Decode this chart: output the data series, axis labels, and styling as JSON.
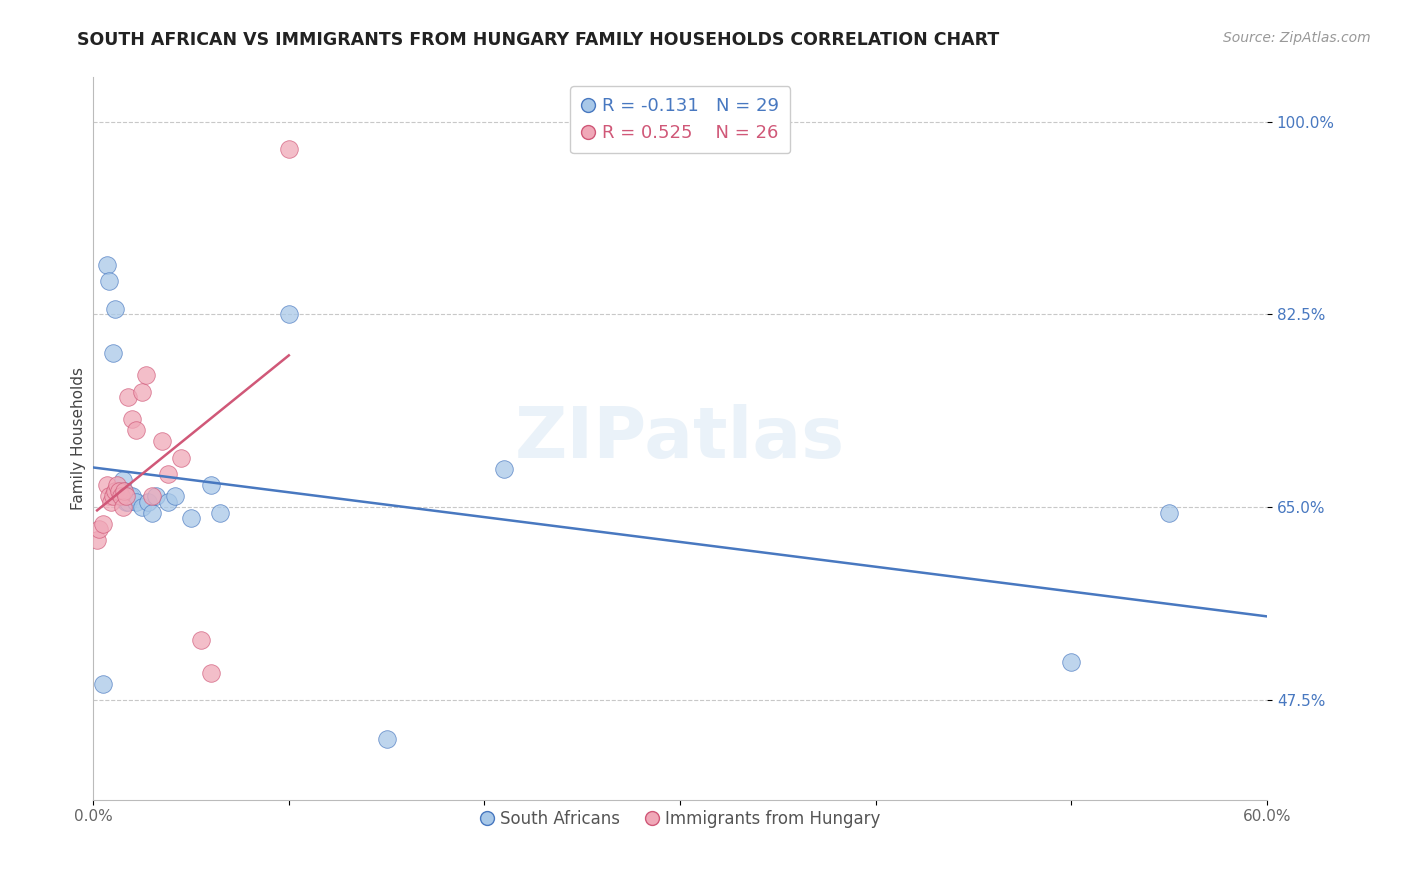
{
  "title": "SOUTH AFRICAN VS IMMIGRANTS FROM HUNGARY FAMILY HOUSEHOLDS CORRELATION CHART",
  "source": "Source: ZipAtlas.com",
  "ylabel": "Family Households",
  "r_south_african": -0.131,
  "n_south_african": 29,
  "r_hungary": 0.525,
  "n_hungary": 26,
  "xlim": [
    0.0,
    0.6
  ],
  "ylim": [
    0.385,
    1.04
  ],
  "yticks": [
    0.475,
    0.65,
    0.825,
    1.0
  ],
  "xticks": [
    0.0,
    0.1,
    0.2,
    0.3,
    0.4,
    0.5,
    0.6
  ],
  "xtick_labels": [
    "0.0%",
    "",
    "",
    "",
    "",
    "",
    "60.0%"
  ],
  "ytick_labels": [
    "47.5%",
    "65.0%",
    "82.5%",
    "100.0%"
  ],
  "color_blue": "#A8C8E8",
  "color_pink": "#F0A8B8",
  "line_blue": "#4878C0",
  "line_pink": "#D05878",
  "background": "#FFFFFF",
  "grid_color": "#C8C8C8",
  "south_african_x": [
    0.005,
    0.007,
    0.008,
    0.01,
    0.011,
    0.012,
    0.013,
    0.014,
    0.015,
    0.016,
    0.017,
    0.018,
    0.019,
    0.02,
    0.022,
    0.025,
    0.028,
    0.03,
    0.032,
    0.038,
    0.042,
    0.05,
    0.06,
    0.065,
    0.1,
    0.15,
    0.21,
    0.5,
    0.55
  ],
  "south_african_y": [
    0.49,
    0.87,
    0.855,
    0.79,
    0.83,
    0.665,
    0.66,
    0.66,
    0.675,
    0.665,
    0.655,
    0.655,
    0.66,
    0.66,
    0.655,
    0.65,
    0.655,
    0.645,
    0.66,
    0.655,
    0.66,
    0.64,
    0.67,
    0.645,
    0.825,
    0.44,
    0.685,
    0.51,
    0.645
  ],
  "hungary_x": [
    0.002,
    0.003,
    0.005,
    0.007,
    0.008,
    0.009,
    0.01,
    0.011,
    0.012,
    0.013,
    0.014,
    0.015,
    0.016,
    0.017,
    0.018,
    0.02,
    0.022,
    0.025,
    0.027,
    0.03,
    0.035,
    0.038,
    0.045,
    0.055,
    0.06,
    0.1
  ],
  "hungary_y": [
    0.62,
    0.63,
    0.635,
    0.67,
    0.66,
    0.655,
    0.66,
    0.665,
    0.67,
    0.665,
    0.66,
    0.65,
    0.665,
    0.66,
    0.75,
    0.73,
    0.72,
    0.755,
    0.77,
    0.66,
    0.71,
    0.68,
    0.695,
    0.53,
    0.5,
    0.975
  ]
}
